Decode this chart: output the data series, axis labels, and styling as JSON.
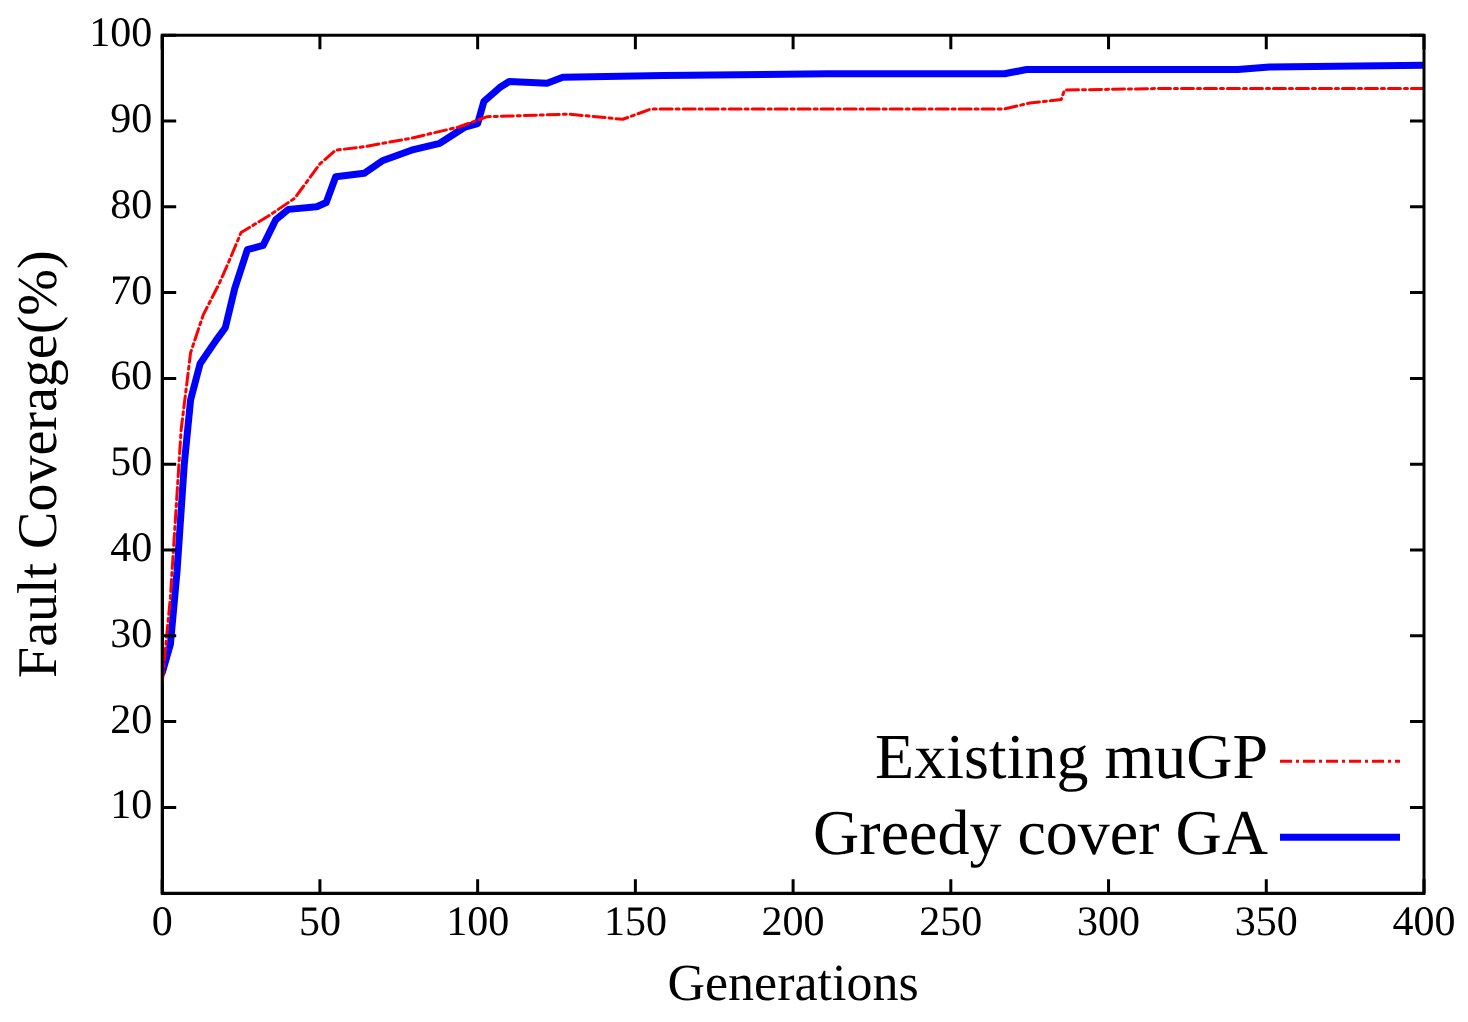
{
  "chart_data": {
    "type": "line",
    "xlabel": "Generations",
    "ylabel": "Fault Coverage(%)",
    "xlim": [
      0,
      400
    ],
    "xticks": [
      0,
      50,
      100,
      150,
      200,
      250,
      300,
      350,
      400
    ],
    "ylim": [
      0,
      100
    ],
    "yticks": [
      10,
      20,
      30,
      40,
      50,
      60,
      70,
      80,
      90,
      100
    ],
    "grid": false,
    "legend": "bottom right",
    "marker": "none",
    "series": [
      {
        "name": "Existing muGP",
        "color": "#ff0000",
        "line_style": "dashed",
        "x": [
          0,
          2.6,
          6,
          9,
          13,
          18,
          21,
          25,
          34,
          42,
          50,
          55,
          64,
          79,
          94,
          103,
          129,
          146,
          155,
          211,
          267,
          275,
          285,
          286,
          318,
          400
        ],
        "values": [
          24.5,
          34.5,
          54,
          63,
          67.4,
          71,
          73.5,
          77,
          79,
          81,
          85,
          86.6,
          87,
          88,
          89.3,
          90.5,
          90.8,
          90.2,
          91.4,
          91.4,
          91.4,
          92.1,
          92.5,
          93.6,
          93.8,
          93.8
        ]
      },
      {
        "name": "Greedy cover GA",
        "color": "#0000ff",
        "line_style": "solid",
        "x": [
          0,
          2.6,
          4.7,
          7,
          9,
          12,
          17,
          20,
          23,
          27,
          32,
          36,
          40,
          49,
          52,
          55,
          64,
          70,
          79,
          88,
          96,
          100,
          102,
          107,
          110,
          122,
          127,
          159,
          211,
          267,
          274,
          341,
          351,
          400
        ],
        "values": [
          25.7,
          29,
          37.5,
          50,
          57.5,
          61.7,
          64.4,
          65.9,
          70.5,
          75,
          75.5,
          78.5,
          79.7,
          80,
          80.5,
          83.5,
          83.9,
          85.4,
          86.6,
          87.4,
          89.3,
          89.7,
          92.3,
          93.9,
          94.6,
          94.4,
          95.1,
          95.3,
          95.5,
          95.5,
          96,
          96,
          96.3,
          96.5
        ]
      }
    ]
  }
}
